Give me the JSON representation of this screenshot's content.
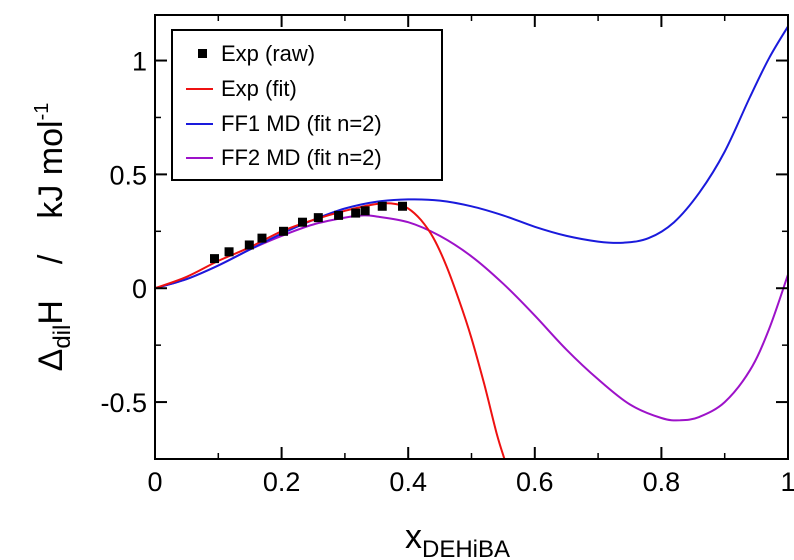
{
  "chart_data": {
    "type": "line",
    "xlabel": {
      "main": "x",
      "sub": "DEHiBA"
    },
    "ylabel": {
      "delta": "Δ",
      "delta_sub": "dil",
      "main": "H",
      "slash": "/",
      "unit": "kJ mol",
      "unit_sup": "-1"
    },
    "xlim": [
      0,
      1
    ],
    "ylim": [
      -0.75,
      1.2
    ],
    "xticks": [
      0,
      0.2,
      0.4,
      0.6,
      0.8,
      1
    ],
    "xtick_labels": [
      "0",
      "0.2",
      "0.4",
      "0.6",
      "0.8",
      "1"
    ],
    "yticks": [
      -0.5,
      0,
      0.5,
      1
    ],
    "ytick_labels": [
      "-0.5",
      "0",
      "0.5",
      "1"
    ],
    "grid": false,
    "legend_position": "top-left",
    "series": [
      {
        "name": "Exp (raw)",
        "kind": "scatter",
        "color": "#000000",
        "x": [
          0.094,
          0.117,
          0.149,
          0.169,
          0.203,
          0.233,
          0.258,
          0.29,
          0.317,
          0.332,
          0.359,
          0.391
        ],
        "y": [
          0.13,
          0.16,
          0.19,
          0.22,
          0.25,
          0.29,
          0.31,
          0.32,
          0.33,
          0.34,
          0.36,
          0.36
        ]
      },
      {
        "name": "Exp (fit)",
        "kind": "line",
        "color": "#ee1111",
        "x": [
          0,
          0.05,
          0.1,
          0.15,
          0.2,
          0.25,
          0.3,
          0.35,
          0.38,
          0.4,
          0.42,
          0.44,
          0.46,
          0.48,
          0.5,
          0.52,
          0.54,
          0.552
        ],
        "y": [
          0,
          0.05,
          0.12,
          0.18,
          0.25,
          0.3,
          0.34,
          0.37,
          0.37,
          0.35,
          0.3,
          0.22,
          0.1,
          -0.05,
          -0.22,
          -0.42,
          -0.64,
          -0.75
        ]
      },
      {
        "name": "FF1 MD (fit n=2)",
        "kind": "line",
        "color": "#1a1adc",
        "x": [
          0,
          0.05,
          0.1,
          0.15,
          0.2,
          0.25,
          0.3,
          0.35,
          0.4,
          0.45,
          0.5,
          0.55,
          0.6,
          0.65,
          0.7,
          0.74,
          0.78,
          0.82,
          0.86,
          0.9,
          0.94,
          0.97,
          1.0
        ],
        "y": [
          0,
          0.04,
          0.1,
          0.17,
          0.24,
          0.3,
          0.35,
          0.38,
          0.39,
          0.385,
          0.36,
          0.32,
          0.27,
          0.23,
          0.205,
          0.2,
          0.22,
          0.29,
          0.42,
          0.6,
          0.84,
          1.01,
          1.15
        ]
      },
      {
        "name": "FF2 MD (fit n=2)",
        "kind": "line",
        "color": "#9d12c9",
        "x": [
          0,
          0.05,
          0.1,
          0.15,
          0.2,
          0.25,
          0.3,
          0.33,
          0.35,
          0.4,
          0.45,
          0.5,
          0.55,
          0.6,
          0.65,
          0.7,
          0.75,
          0.8,
          0.83,
          0.86,
          0.9,
          0.94,
          0.97,
          1.0
        ],
        "y": [
          0,
          0.04,
          0.1,
          0.17,
          0.23,
          0.28,
          0.31,
          0.32,
          0.315,
          0.29,
          0.23,
          0.14,
          0.02,
          -0.12,
          -0.27,
          -0.4,
          -0.51,
          -0.57,
          -0.58,
          -0.565,
          -0.5,
          -0.36,
          -0.18,
          0.06
        ]
      }
    ]
  }
}
